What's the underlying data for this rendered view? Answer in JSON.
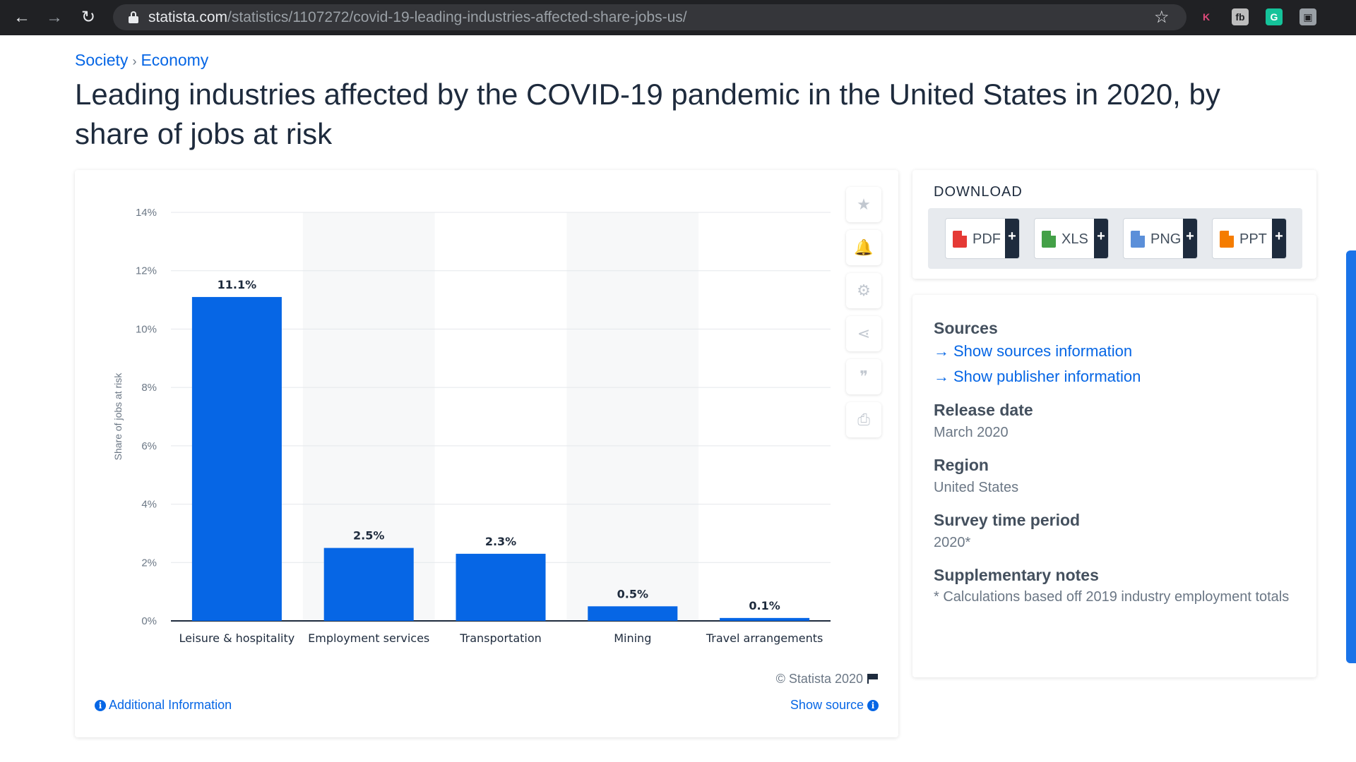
{
  "browser": {
    "url_host": "statista.com",
    "url_path": "/statistics/1107272/covid-19-leading-industries-affected-share-jobs-us/",
    "extensions": [
      {
        "name": "k-extension",
        "glyph": "K",
        "color": "#e04a7a",
        "bg": "#202124"
      },
      {
        "name": "fb-extension",
        "glyph": "fb",
        "color": "#202124",
        "bg": "#bdbdbd"
      },
      {
        "name": "grammarly-extension",
        "glyph": "G",
        "color": "#ffffff",
        "bg": "#15c39a"
      },
      {
        "name": "image-extension",
        "glyph": "▣",
        "color": "#202124",
        "bg": "#9aa0a6"
      }
    ]
  },
  "breadcrumb": {
    "items": [
      "Society",
      "Economy"
    ],
    "separator": "›"
  },
  "page": {
    "title": "Leading industries affected by the COVID-19 pandemic in the United States in 2020, by share of jobs at risk"
  },
  "chart_footer": {
    "copyright": "© Statista 2020",
    "additional_info": "Additional Information",
    "show_source": "Show source"
  },
  "chart_data": {
    "type": "bar",
    "title": "",
    "xlabel": "",
    "ylabel": "Share of jobs at risk",
    "categories": [
      "Leisure & hospitality",
      "Employment services",
      "Transportation",
      "Mining",
      "Travel arrangements"
    ],
    "values": [
      11.1,
      2.5,
      2.3,
      0.5,
      0.1
    ],
    "value_labels": [
      "11.1%",
      "2.5%",
      "2.3%",
      "0.5%",
      "0.1%"
    ],
    "ylim": [
      0,
      14
    ],
    "yticks": [
      0,
      2,
      4,
      6,
      8,
      10,
      12,
      14
    ],
    "ytick_labels": [
      "0%",
      "2%",
      "4%",
      "6%",
      "8%",
      "10%",
      "12%",
      "14%"
    ],
    "bar_color": "#0666e5",
    "grid": true
  },
  "tools": [
    {
      "name": "favorite-icon",
      "glyph": "★"
    },
    {
      "name": "bell-icon",
      "glyph": "🔔"
    },
    {
      "name": "gear-icon",
      "glyph": "⚙"
    },
    {
      "name": "share-icon",
      "glyph": "⋖"
    },
    {
      "name": "quote-icon",
      "glyph": "❞"
    },
    {
      "name": "print-icon",
      "glyph": "⎙"
    }
  ],
  "download": {
    "title": "DOWNLOAD",
    "buttons": [
      {
        "label": "PDF",
        "color": "#e53935"
      },
      {
        "label": "XLS",
        "color": "#43a047"
      },
      {
        "label": "PNG",
        "color": "#5b8fd9"
      },
      {
        "label": "PPT",
        "color": "#f57c00"
      }
    ],
    "plus": "+"
  },
  "info": {
    "sources_title": "Sources",
    "links": [
      "Show sources information",
      "Show publisher information"
    ],
    "release_title": "Release date",
    "release_value": "March 2020",
    "region_title": "Region",
    "region_value": "United States",
    "period_title": "Survey time period",
    "period_value": "2020*",
    "notes_title": "Supplementary notes",
    "notes_value": "* Calculations based off 2019 industry employment totals"
  }
}
